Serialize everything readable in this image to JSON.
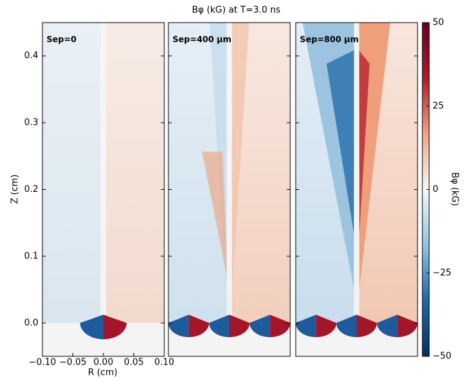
{
  "chart_data": {
    "type": "heatmap",
    "title": "Bφ (kG) at T=3.0 ns",
    "xlabel": "R (cm)",
    "ylabel": "Z (cm)",
    "xlim": [
      -0.1,
      0.1
    ],
    "xticks": [
      {
        "value": -0.1,
        "label": "−0.10"
      },
      {
        "value": -0.05,
        "label": "−0.05"
      },
      {
        "value": 0,
        "label": "0.00"
      },
      {
        "value": 0.05,
        "label": "0.05"
      },
      {
        "value": 0.1,
        "label": "0.10"
      }
    ],
    "ylim": [
      -0.05,
      0.45
    ],
    "yticks": [
      {
        "value": 0,
        "label": "0.0"
      },
      0.1,
      0.2,
      0.3,
      0.4
    ],
    "panels": [
      {
        "label": "Sep=0"
      },
      {
        "label": "Sep=400 μm"
      },
      {
        "label": "Sep=800 μm"
      }
    ],
    "colorbar": {
      "label": "Bφ (kG)",
      "lim": [
        -50,
        50
      ],
      "ticks": [
        {
          "value": -50,
          "label": "−50"
        },
        {
          "value": -25,
          "label": "−25"
        },
        0,
        25,
        50
      ],
      "colormap": [
        "#053061",
        "#2166ac",
        "#92c5de",
        "#f7f7f7",
        "#f4a582",
        "#b2182b",
        "#67001f"
      ]
    }
  }
}
